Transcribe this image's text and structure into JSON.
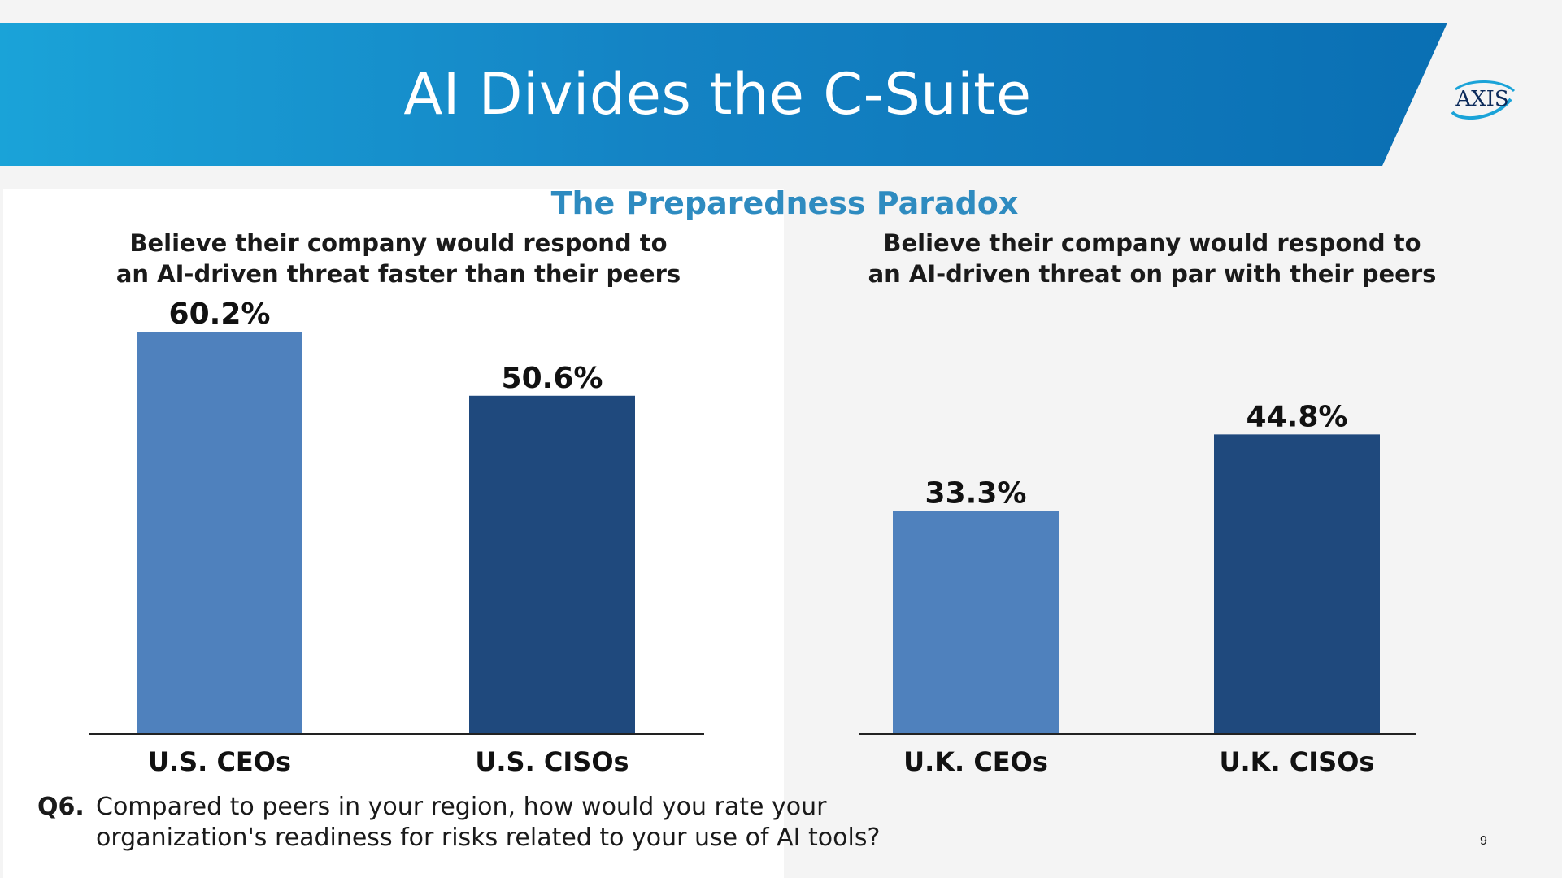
{
  "header": {
    "title": "AI Divides the C-Suite",
    "logo_text": "AXIS"
  },
  "subtitle": "The Preparedness Paradox",
  "panels": [
    {
      "heading_lines": [
        "Believe their company would respond to",
        "an AI-driven threat faster than their peers"
      ]
    },
    {
      "heading_lines": [
        "Believe their company would respond to",
        "an AI-driven threat on par with their peers"
      ]
    }
  ],
  "chart_data": [
    {
      "type": "bar",
      "title": "Believe their company would respond to an AI-driven threat faster than their peers",
      "categories": [
        "U.S. CEOs",
        "U.S. CISOs"
      ],
      "values": [
        60.2,
        50.6
      ],
      "value_labels": [
        "60.2%",
        "50.6%"
      ],
      "colors": [
        "#4f81bd",
        "#1f497d"
      ],
      "xlabel": "",
      "ylabel": "",
      "ylim": [
        0,
        60.2
      ],
      "grid": false
    },
    {
      "type": "bar",
      "title": "Believe their company would respond to an AI-driven threat on par with their peers",
      "categories": [
        "U.K. CEOs",
        "U.K. CISOs"
      ],
      "values": [
        33.3,
        44.8
      ],
      "value_labels": [
        "33.3%",
        "44.8%"
      ],
      "colors": [
        "#4f81bd",
        "#1f497d"
      ],
      "xlabel": "",
      "ylabel": "",
      "ylim": [
        0,
        60.2
      ],
      "grid": false
    }
  ],
  "footnote": {
    "label": "Q6.",
    "lines": [
      "Compared to peers in your region, how would you rate your",
      "organization's readiness for risks related to your use of AI tools?"
    ]
  },
  "page_number": "9",
  "colors": {
    "banner_start": "#1aa3d8",
    "banner_end": "#0a6fb3",
    "accent": "#2e8bc0",
    "bar_light": "#4f81bd",
    "bar_dark": "#1f497d"
  }
}
